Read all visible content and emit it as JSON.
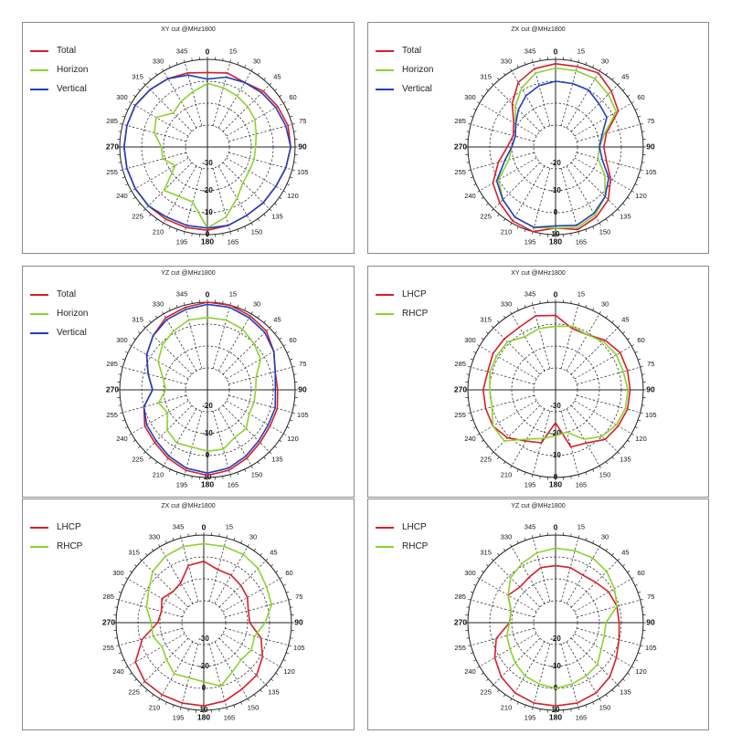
{
  "panels": [
    {
      "title": "XY cut @MHz1800",
      "legend": [
        {
          "label": "Total",
          "color": "#d81e28"
        },
        {
          "label": "Horizon",
          "color": "#8ad32e"
        },
        {
          "label": "Vertical",
          "color": "#1f3fbf"
        }
      ],
      "radial_labels": [
        "-30",
        "-20",
        "-10",
        "0"
      ],
      "chart_data": {
        "type": "polar",
        "title": "XY cut @MHz1800",
        "angles_deg": [
          0,
          15,
          30,
          45,
          60,
          75,
          90,
          105,
          120,
          135,
          150,
          165,
          180,
          195,
          210,
          225,
          240,
          255,
          270,
          285,
          300,
          315,
          330,
          345
        ],
        "radial_ticks": [
          -30,
          -20,
          -10,
          0
        ],
        "series": [
          {
            "name": "Total",
            "color": "#d81e28",
            "values": [
              -6,
              -5,
              -6,
              -4,
              -3,
              -2,
              -2,
              -3,
              -4,
              -4,
              -4,
              -3,
              -2,
              -2,
              -2,
              -2,
              -2,
              -2,
              -2,
              -2,
              -2,
              -3,
              -4,
              -5
            ]
          },
          {
            "name": "Horizon",
            "color": "#8ad32e",
            "values": [
              -11,
              -12,
              -13,
              -14,
              -15,
              -17,
              -18,
              -18,
              -18,
              -17,
              -13,
              -7,
              -3,
              -14,
              -14,
              -12,
              -23,
              -19,
              -19,
              -15,
              -13,
              -18,
              -16,
              -14
            ]
          },
          {
            "name": "Vertical",
            "color": "#1f3fbf",
            "values": [
              -9,
              -7,
              -6,
              -5,
              -4,
              -3,
              -2,
              -3,
              -4,
              -4,
              -4,
              -3,
              -3,
              -3,
              -3,
              -2,
              -2,
              -2,
              -2,
              -2,
              -2,
              -3,
              -4,
              -6
            ]
          }
        ]
      }
    },
    {
      "title": "ZX cut @MHz1800",
      "legend": [
        {
          "label": "Total",
          "color": "#d81e28"
        },
        {
          "label": "Horizon",
          "color": "#8ad32e"
        },
        {
          "label": "Vertical",
          "color": "#1f3fbf"
        }
      ],
      "radial_labels": [
        "-20",
        "-10",
        "0",
        "10"
      ],
      "chart_data": {
        "type": "polar",
        "title": "ZX cut @MHz1800",
        "angles_deg": [
          0,
          15,
          30,
          45,
          60,
          75,
          90,
          105,
          120,
          135,
          150,
          165,
          180,
          195,
          210,
          225,
          240,
          255,
          270,
          285,
          300,
          315,
          330,
          345
        ],
        "radial_ticks": [
          -20,
          -10,
          0,
          10
        ],
        "series": [
          {
            "name": "Total",
            "color": "#d81e28",
            "values": [
              -2,
              -2,
              -1,
              -4,
              -7,
              -16,
              -18,
              -16,
              -11,
              -6,
              -3,
              -1,
              -3,
              0,
              -1,
              -4,
              -7,
              -13,
              -18,
              -20,
              -18,
              -12,
              -6,
              -3
            ]
          },
          {
            "name": "Horizon",
            "color": "#8ad32e",
            "values": [
              -4,
              -4,
              -4,
              -6,
              -8,
              -17,
              -20,
              -20,
              -14,
              -8,
              -4,
              -2,
              -3,
              -2,
              -3,
              -6,
              -10,
              -18,
              -20,
              -21,
              -19,
              -14,
              -9,
              -5
            ]
          },
          {
            "name": "Vertical",
            "color": "#1f3fbf",
            "values": [
              -10,
              -10,
              -10,
              -12,
              -13,
              -18,
              -20,
              -18,
              -12,
              -8,
              -5,
              -3,
              -4,
              -2,
              -3,
              -6,
              -9,
              -16,
              -20,
              -21,
              -19,
              -16,
              -13,
              -11
            ]
          }
        ]
      }
    },
    {
      "title": "YZ cut @MHz1800",
      "legend": [
        {
          "label": "Total",
          "color": "#d81e28"
        },
        {
          "label": "Horizon",
          "color": "#8ad32e"
        },
        {
          "label": "Vertical",
          "color": "#1f3fbf"
        }
      ],
      "radial_labels": [
        "-20",
        "-10",
        "0",
        "10"
      ],
      "chart_data": {
        "type": "polar",
        "title": "YZ cut @MHz1800",
        "angles_deg": [
          0,
          15,
          30,
          45,
          60,
          75,
          90,
          105,
          120,
          135,
          150,
          165,
          180,
          195,
          210,
          225,
          240,
          255,
          270,
          285,
          300,
          315,
          330,
          345
        ],
        "radial_ticks": [
          -20,
          -10,
          0,
          10
        ],
        "series": [
          {
            "name": "Total",
            "color": "#d81e28",
            "values": [
              0,
              0,
              -1,
              -2,
              -5,
              -8,
              -8,
              -7,
              -7,
              -6,
              -4,
              -2,
              -1,
              -2,
              -4,
              -6,
              -7,
              -10,
              -15,
              -12,
              -8,
              -5,
              -2,
              -1
            ]
          },
          {
            "name": "Horizon",
            "color": "#8ad32e",
            "values": [
              -7,
              -7,
              -8,
              -10,
              -12,
              -17,
              -18,
              -18,
              -18,
              -15,
              -15,
              -12,
              -12,
              -13,
              -12,
              -14,
              -19,
              -17,
              -21,
              -19,
              -14,
              -11,
              -9,
              -7
            ]
          },
          {
            "name": "Vertical",
            "color": "#1f3fbf",
            "values": [
              -1,
              -1,
              -2,
              -3,
              -5,
              -8,
              -9,
              -8,
              -8,
              -7,
              -5,
              -3,
              -2,
              -3,
              -5,
              -7,
              -8,
              -10,
              -15,
              -12,
              -8,
              -5,
              -3,
              -2
            ]
          }
        ]
      }
    },
    {
      "title": "XY cut @MHz1800",
      "legend": [
        {
          "label": "LHCP",
          "color": "#d81e28"
        },
        {
          "label": "RHCP",
          "color": "#8ad32e"
        }
      ],
      "radial_labels": [
        "-30",
        "-20",
        "-10",
        "0"
      ],
      "chart_data": {
        "type": "polar",
        "title": "XY cut @MHz1800",
        "angles_deg": [
          0,
          15,
          30,
          45,
          60,
          75,
          90,
          105,
          120,
          135,
          150,
          165,
          180,
          195,
          210,
          225,
          240,
          255,
          270,
          285,
          300,
          315,
          330,
          345
        ],
        "radial_ticks": [
          -30,
          -20,
          -10,
          0
        ],
        "series": [
          {
            "name": "LHCP",
            "color": "#d81e28",
            "values": [
              -6,
              -11,
              -11,
              -8,
              -6,
              -6,
              -6,
              -6,
              -7,
              -8,
              -12,
              -13,
              -25,
              -15,
              -13,
              -9,
              -7,
              -7,
              -7,
              -8,
              -7,
              -7,
              -7,
              -5
            ]
          },
          {
            "name": "RHCP",
            "color": "#8ad32e",
            "values": [
              -11,
              -10,
              -11,
              -9,
              -8,
              -8,
              -7,
              -7,
              -8,
              -10,
              -14,
              -20,
              -19,
              -17,
              -14,
              -7,
              -7,
              -10,
              -10,
              -9,
              -9,
              -9,
              -12,
              -11
            ]
          }
        ]
      }
    },
    {
      "title": "ZX cut @MHz1800",
      "legend": [
        {
          "label": "LHCP",
          "color": "#d81e28"
        },
        {
          "label": "RHCP",
          "color": "#8ad32e"
        }
      ],
      "radial_labels": [
        "-30",
        "-20",
        "0",
        "10"
      ],
      "chart_data": {
        "type": "polar",
        "title": "ZX cut @MHz1800",
        "angles_deg": [
          0,
          15,
          30,
          45,
          60,
          75,
          90,
          105,
          120,
          135,
          150,
          165,
          180,
          195,
          210,
          225,
          240,
          255,
          270,
          285,
          300,
          315,
          330,
          345
        ],
        "radial_ticks": [
          -30,
          -20,
          0,
          10
        ],
        "series": [
          {
            "name": "LHCP",
            "color": "#d81e28",
            "values": [
              -12,
              -15,
              -15,
              -16,
              -17,
              -19,
              -19,
              -13,
              -9,
              -6,
              -5,
              -3,
              -2,
              -2,
              -2,
              -2,
              -4,
              -11,
              -19,
              -20,
              -18,
              -20,
              -19,
              -13
            ]
          },
          {
            "name": "RHCP",
            "color": "#8ad32e",
            "values": [
              -4,
              -4,
              -4,
              -5,
              -7,
              -8,
              -12,
              -16,
              -15,
              -16,
              -14,
              -10,
              -13,
              -14,
              -13,
              -16,
              -18,
              -16,
              -16,
              -13,
              -11,
              -7,
              -5,
              -4
            ]
          }
        ]
      }
    },
    {
      "title": "YZ cut @MHz1800",
      "legend": [
        {
          "label": "LHCP",
          "color": "#d81e28"
        },
        {
          "label": "RHCP",
          "color": "#8ad32e"
        }
      ],
      "radial_labels": [
        "-20",
        "-10",
        "0",
        "10"
      ],
      "chart_data": {
        "type": "polar",
        "title": "YZ cut @MHz1800",
        "angles_deg": [
          0,
          15,
          30,
          45,
          60,
          75,
          90,
          105,
          120,
          135,
          150,
          165,
          180,
          195,
          210,
          225,
          240,
          255,
          270,
          285,
          300,
          315,
          330,
          345
        ],
        "radial_ticks": [
          -20,
          -10,
          0,
          10
        ],
        "series": [
          {
            "name": "LHCP",
            "color": "#d81e28",
            "values": [
              -14,
              -14,
              -15,
              -14,
              -12,
              -11,
              -11,
              -10,
              -8,
              -5,
              -3,
              -2,
              -2,
              -2,
              -3,
              -5,
              -8,
              -12,
              -19,
              -19,
              -15,
              -17,
              -16,
              -14
            ]
          },
          {
            "name": "RHCP",
            "color": "#8ad32e",
            "values": [
              -6,
              -6,
              -6,
              -7,
              -9,
              -11,
              -17,
              -17,
              -16,
              -13,
              -12,
              -11,
              -10,
              -11,
              -12,
              -14,
              -16,
              -17,
              -19,
              -19,
              -15,
              -11,
              -9,
              -7
            ]
          }
        ]
      }
    }
  ]
}
